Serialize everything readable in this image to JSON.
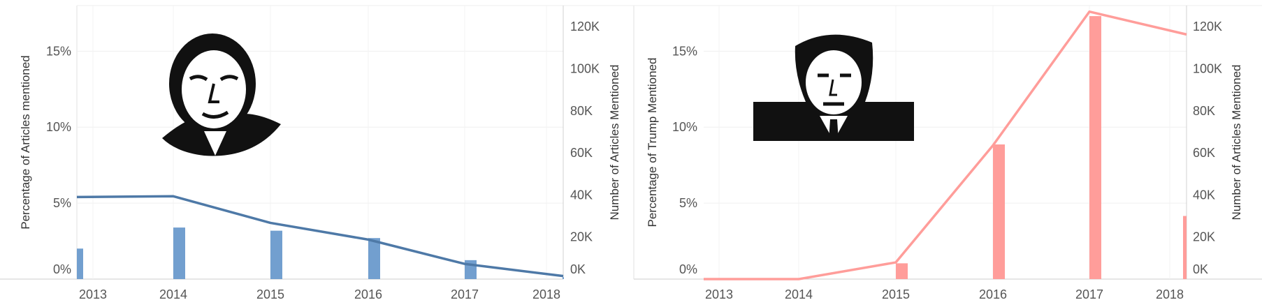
{
  "chart_data": [
    {
      "type": "bar+line",
      "title": "",
      "categories": [
        "2013",
        "2014",
        "2015",
        "2016",
        "2017",
        "2018"
      ],
      "line_series": {
        "values": [
          5.4,
          5.45,
          3.7,
          2.6,
          1.0,
          0.2
        ],
        "color": "#4e79a7",
        "axis": "left"
      },
      "bar_series": {
        "values": [
          14500,
          24500,
          23000,
          19500,
          9000,
          900
        ],
        "color": "#729fcf",
        "axis": "right"
      },
      "ylabel": "Percentage of Articles mentioned",
      "y2label": "Number of Articles Mentioned",
      "ylim": [
        0,
        18
      ],
      "y2lim": [
        0,
        130000
      ],
      "yticks": [
        "0%",
        "5%",
        "10%",
        "15%"
      ],
      "y2ticks": [
        "0K",
        "20K",
        "40K",
        "60K",
        "80K",
        "100K",
        "120K"
      ],
      "grid": true,
      "image_icon": "obama-portrait"
    },
    {
      "type": "bar+line",
      "title": "",
      "categories": [
        "2013",
        "2014",
        "2015",
        "2016",
        "2017",
        "2018"
      ],
      "line_series": {
        "values": [
          0.0,
          0.0,
          1.1,
          8.8,
          17.6,
          16.1
        ],
        "color": "#ff9d9a",
        "axis": "left"
      },
      "bar_series": {
        "values": [
          0,
          0,
          7500,
          64000,
          125000,
          30000
        ],
        "color": "#ff9d9a",
        "axis": "right"
      },
      "ylabel": "Percentage of Trump Mentioned",
      "y2label": "Number of Articles Mentioned",
      "ylim": [
        0,
        18
      ],
      "y2lim": [
        0,
        130000
      ],
      "yticks": [
        "0%",
        "5%",
        "10%",
        "15%"
      ],
      "y2ticks": [
        "0K",
        "20K",
        "40K",
        "60K",
        "80K",
        "100K",
        "120K"
      ],
      "grid": true,
      "image_icon": "trump-portrait"
    }
  ]
}
